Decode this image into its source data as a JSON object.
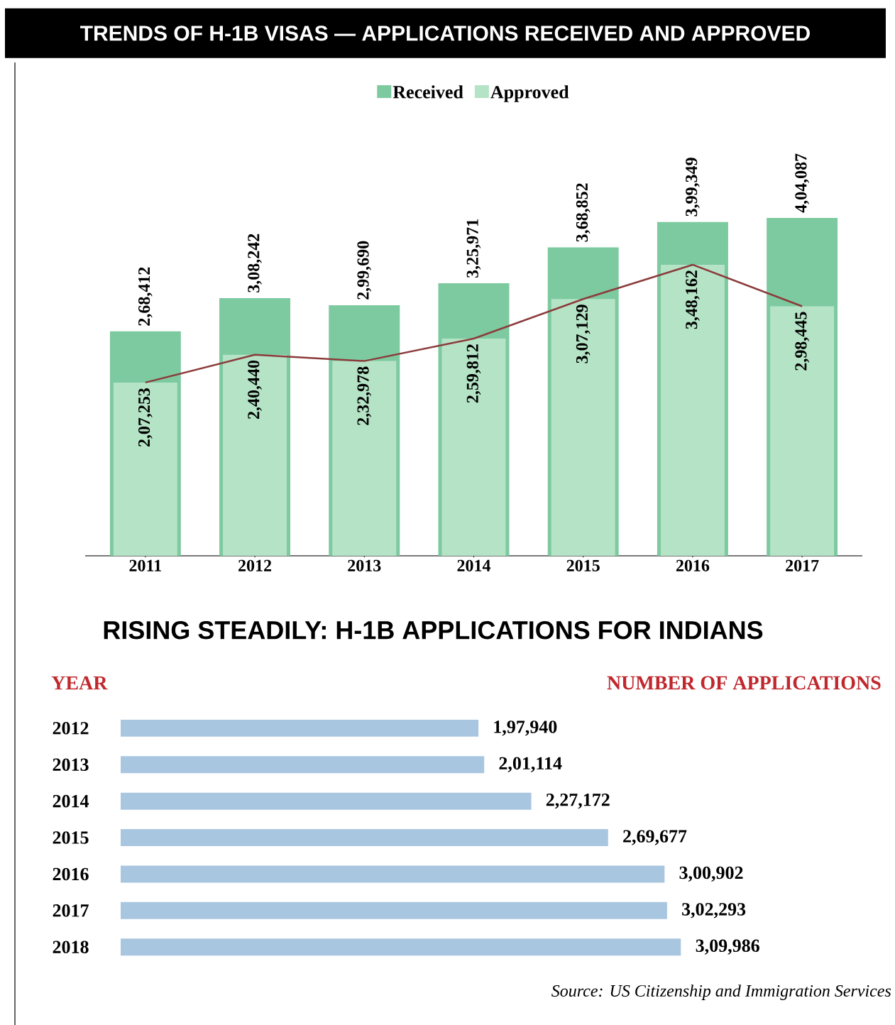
{
  "chart_data": [
    {
      "type": "bar",
      "title": "TRENDS OF H-1B VISAS — APPLICATIONS RECEIVED AND APPROVED",
      "categories": [
        "2011",
        "2012",
        "2013",
        "2014",
        "2015",
        "2016",
        "2017"
      ],
      "series": [
        {
          "name": "Received",
          "color": "#7dcaa0",
          "values": [
            268412,
            308242,
            299690,
            325971,
            368852,
            399349,
            404087
          ],
          "value_labels": [
            "2,68,412",
            "3,08,242",
            "2,99,690",
            "3,25,971",
            "3,68,852",
            "3,99,349",
            "4,04,087"
          ]
        },
        {
          "name": "Approved",
          "color": "#b5e3c6",
          "values": [
            207253,
            240440,
            232978,
            259812,
            307129,
            348162,
            298445
          ],
          "value_labels": [
            "2,07,253",
            "2,40,440",
            "2,32,978",
            "2,59,812",
            "3,07,129",
            "3,48,162",
            "2,98,445"
          ]
        },
        {
          "type": "line",
          "color": "#8b3b3b",
          "values": [
            207253,
            240440,
            232978,
            259812,
            307129,
            348162,
            298445
          ]
        }
      ],
      "legend": "top"
    },
    {
      "type": "bar",
      "orientation": "horizontal",
      "title": "RISING STEADILY: H-1B APPLICATIONS FOR INDIANS",
      "categories": [
        "2012",
        "2013",
        "2014",
        "2015",
        "2016",
        "2017",
        "2018"
      ],
      "values": [
        197940,
        201114,
        227172,
        269677,
        300902,
        302293,
        309986
      ],
      "value_labels": [
        "1,97,940",
        "2,01,114",
        "2,27,172",
        "2,69,677",
        "3,00,902",
        "3,02,293",
        "3,09,986"
      ],
      "color": "#a9c6e0",
      "annotations": [
        "YEAR",
        "NUMBER OF APPLICATIONS",
        "Source: US Citizenship and Immigration Services"
      ]
    }
  ]
}
